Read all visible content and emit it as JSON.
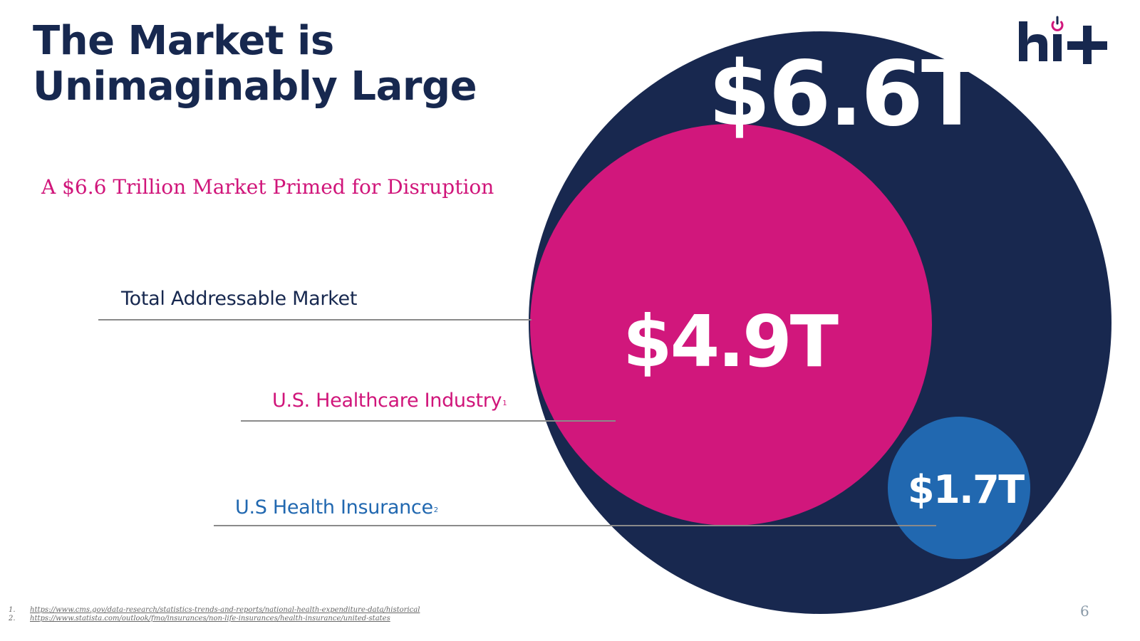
{
  "title": {
    "line1": "The Market is",
    "line2": "Unimaginably Large"
  },
  "subtitle": "A $6.6 Trillion Market Primed for Disruption",
  "logo": {
    "text": "hi+",
    "icon": "power-icon"
  },
  "colors": {
    "navy": "#18284f",
    "magenta": "#d1177c",
    "blue": "#2168b0"
  },
  "markets": {
    "tam": {
      "label": "Total Addressable Market",
      "value": "$6.6T",
      "footnote_ref": ""
    },
    "healthcare": {
      "label": "U.S. Healthcare Industry",
      "value": "$4.9T",
      "footnote_ref": "1"
    },
    "insurance": {
      "label": "U.S Health Insurance",
      "value": "$1.7T",
      "footnote_ref": "2"
    }
  },
  "footnotes": [
    {
      "num": "1.",
      "url": "https://www.cms.gov/data-research/statistics-trends-and-reports/national-health-expenditure-data/historical"
    },
    {
      "num": "2.",
      "url": "https://www.statista.com/outlook/fmo/insurances/non-life-insurances/health-insurance/united-states"
    }
  ],
  "page_number": "6"
}
